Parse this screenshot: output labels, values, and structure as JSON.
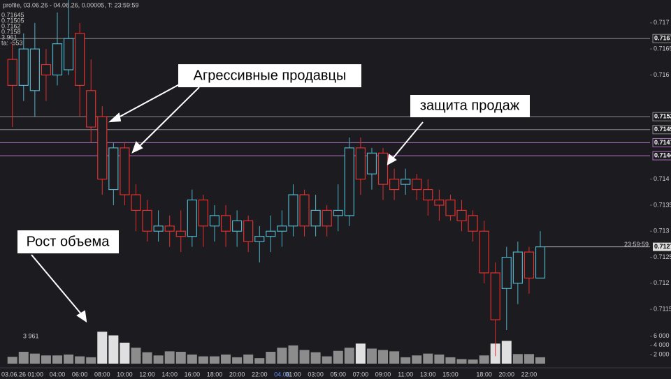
{
  "chart_data": {
    "type": "candlestick",
    "header": "profile, 03.06.26 - 04.06.26, 0.00005, T: 23:59:59",
    "side_labels": [
      "0.71645",
      "0.71505",
      "0.7162",
      "0.7158",
      "3 961",
      "ta: -553"
    ],
    "bottom_left_label": "03.06.26 01:00",
    "categories": [
      null,
      null,
      null,
      null,
      "04:00",
      null,
      "06:00",
      null,
      "08:00",
      null,
      "10:00",
      null,
      "12:00",
      null,
      "14:00",
      null,
      "16:00",
      null,
      "18:00",
      null,
      "20:00",
      null,
      "22:00",
      null,
      "04.06",
      "01:00",
      null,
      "03:00",
      null,
      "05:00",
      null,
      "07:00",
      null,
      "09:00",
      null,
      "11:00",
      null,
      "13:00",
      null,
      "15:00",
      null,
      null,
      "18:00",
      null,
      "20:00",
      null,
      "22:00",
      null
    ],
    "open": [
      0.7163,
      0.7158,
      0.7157,
      0.7162,
      0.716,
      0.7161,
      0.7168,
      0.7157,
      0.7152,
      0.7138,
      0.7146,
      0.7137,
      0.7134,
      0.713,
      0.7131,
      0.713,
      0.7129,
      0.7136,
      0.7131,
      0.7133,
      0.713,
      0.7132,
      0.7128,
      0.7129,
      0.713,
      0.7131,
      0.7137,
      0.7131,
      0.7134,
      0.7133,
      0.7133,
      0.7146,
      0.7141,
      0.7145,
      0.714,
      0.7139,
      0.714,
      0.7138,
      0.7136,
      0.7136,
      0.7134,
      0.7133,
      0.713,
      0.7122,
      0.7119,
      0.712,
      0.7126,
      0.7121
    ],
    "high": [
      0.7166,
      0.7168,
      0.717,
      0.7165,
      0.7172,
      0.7175,
      0.717,
      0.7163,
      0.7154,
      0.7147,
      0.7147,
      0.7139,
      0.7136,
      0.7134,
      0.7133,
      0.7134,
      0.7138,
      0.7137,
      0.7135,
      0.7135,
      0.7134,
      0.7133,
      0.7131,
      0.7133,
      0.7134,
      0.7139,
      0.7138,
      0.7137,
      0.7135,
      0.7139,
      0.7148,
      0.7148,
      0.7146,
      0.7146,
      0.7142,
      0.7142,
      0.7141,
      0.714,
      0.7138,
      0.7137,
      0.7136,
      0.7134,
      0.7132,
      0.7124,
      0.7127,
      0.7128,
      0.7127,
      0.713
    ],
    "low": [
      0.715,
      0.7155,
      0.7152,
      0.7155,
      0.7158,
      0.716,
      0.7152,
      0.7147,
      0.7137,
      0.7135,
      0.7135,
      0.713,
      0.7128,
      0.7128,
      0.7127,
      0.7126,
      0.7127,
      0.7127,
      0.7128,
      0.7127,
      0.7127,
      0.7126,
      0.7124,
      0.7126,
      0.7127,
      0.7129,
      0.7129,
      0.7129,
      0.7129,
      0.713,
      0.7131,
      0.7137,
      0.7138,
      0.7136,
      0.7136,
      0.7137,
      0.7136,
      0.7133,
      0.7132,
      0.7132,
      0.713,
      0.7128,
      0.712,
      0.7106,
      0.7111,
      0.7116,
      0.7118,
      0.7121
    ],
    "close": [
      0.7158,
      0.7165,
      0.7165,
      0.716,
      0.7166,
      0.7167,
      0.7158,
      0.715,
      0.714,
      0.7146,
      0.7137,
      0.7134,
      0.713,
      0.7131,
      0.713,
      0.7129,
      0.7136,
      0.7131,
      0.7133,
      0.713,
      0.7132,
      0.7128,
      0.7129,
      0.713,
      0.7131,
      0.7137,
      0.7131,
      0.7134,
      0.7131,
      0.7134,
      0.7146,
      0.714,
      0.7145,
      0.7139,
      0.7138,
      0.714,
      0.7138,
      0.7136,
      0.7135,
      0.7133,
      0.7132,
      0.713,
      0.7122,
      0.7113,
      0.7125,
      0.7126,
      0.7121,
      0.7127
    ],
    "up_color": "#4fb3c8",
    "down_color": "#e0302e",
    "ylim": [
      0.7111,
      0.7174
    ],
    "yticks": [
      0.717,
      0.7165,
      0.716,
      0.714,
      0.7135,
      0.713,
      0.7125,
      0.712,
      0.7115
    ],
    "levels": [
      0.7167,
      0.7152,
      0.71495,
      0.7147,
      0.71445
    ],
    "level_colors": [
      "#8a8a8a",
      "#8a8a8a",
      "#8a8a8a",
      "#b070c0",
      "#b070c0"
    ],
    "last_price": 0.7127,
    "last_time": "23:59:59",
    "volume_label": "3 961",
    "volume": [
      1500,
      2600,
      2200,
      1800,
      1800,
      2000,
      1600,
      1400,
      7000,
      6200,
      4600,
      3500,
      2500,
      1800,
      2700,
      2600,
      2000,
      1600,
      1600,
      2000,
      1400,
      2000,
      1200,
      2600,
      3500,
      4000,
      3000,
      2500,
      1600,
      2800,
      3500,
      4400,
      3300,
      3000,
      2700,
      1400,
      1800,
      2200,
      2000,
      1400,
      1000,
      900,
      1800,
      4400,
      5000,
      2100,
      2100,
      1400
    ],
    "volume_color": "#8c8c8c",
    "vlim": [
      0,
      7500
    ],
    "vticks": [
      {
        "value": 6000,
        "label": "6 000"
      },
      {
        "value": 4000,
        "label": "4 000"
      },
      {
        "value": 2000,
        "label": "2 000"
      }
    ],
    "annotations": [
      "Агрессивные продавцы",
      "защита продаж",
      "Рост объема"
    ]
  }
}
